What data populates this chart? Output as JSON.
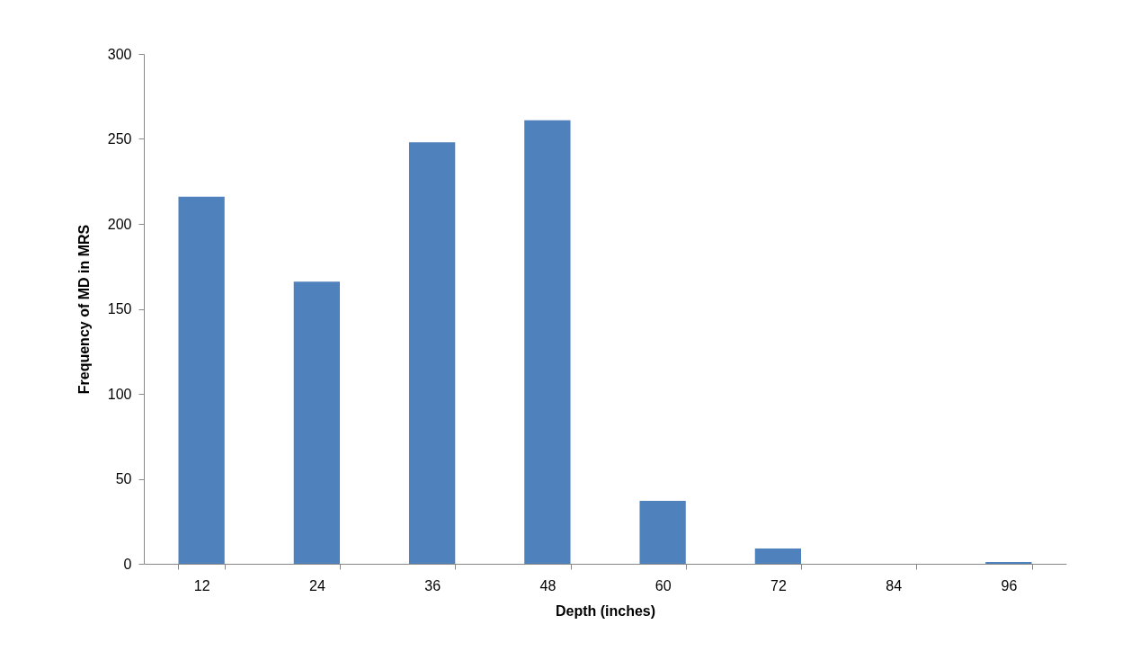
{
  "chart_data": {
    "type": "bar",
    "xlabel": "Depth (inches)",
    "ylabel": "Frequency of MD in MRS",
    "categories": [
      "12",
      "24",
      "36",
      "48",
      "60",
      "72",
      "84",
      "96"
    ],
    "values": [
      216,
      166,
      248,
      261,
      37,
      9,
      0,
      1
    ],
    "color": "#4f81bd",
    "ylim": [
      0,
      300
    ],
    "yticks": [
      0,
      50,
      100,
      150,
      200,
      250,
      300
    ],
    "grid": false,
    "legend": false
  }
}
